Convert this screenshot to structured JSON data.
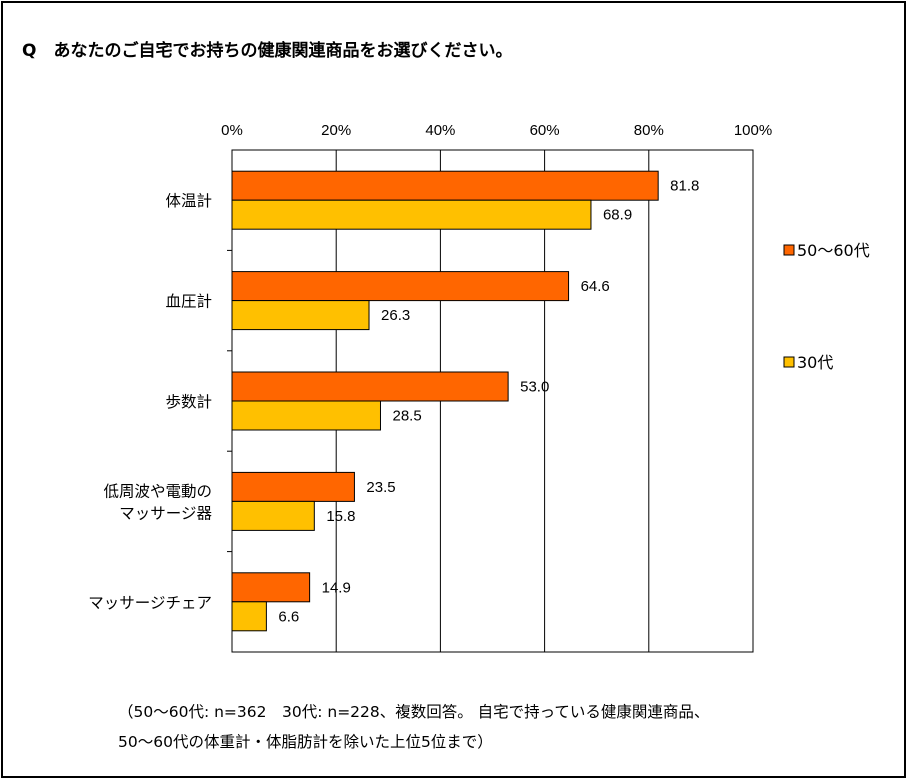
{
  "title": "Q　あなたのご自宅でお持ちの健康関連商品をお選びください。",
  "note": {
    "line1": "（50～60代: n=362　30代: n=228、複数回答。 自宅で持っている健康関連商品、",
    "line2": "50～60代の体重計・体脂肪計を除いた上位5位まで）"
  },
  "chart_data": {
    "type": "bar",
    "orientation": "horizontal",
    "categories": [
      [
        "体温計"
      ],
      [
        "血圧計"
      ],
      [
        "歩数計"
      ],
      [
        "低周波や電動の",
        "マッサージ器"
      ],
      [
        "マッサージチェア"
      ]
    ],
    "series": [
      {
        "name": "50～60代",
        "values": [
          81.8,
          64.6,
          53.0,
          23.5,
          14.9
        ],
        "color": "#FF6600"
      },
      {
        "name": "30代",
        "values": [
          68.9,
          26.3,
          28.5,
          15.8,
          6.6
        ],
        "color": "#FFC000"
      }
    ],
    "data_labels": [
      [
        "81.8",
        "64.6",
        "53.0",
        "23.5",
        "14.9"
      ],
      [
        "68.9",
        "26.3",
        "28.5",
        "15.8",
        "6.6"
      ]
    ],
    "xlim": [
      0,
      100
    ],
    "xticks": [
      "0%",
      "20%",
      "40%",
      "60%",
      "80%",
      "100%"
    ],
    "xaxis_position": "top",
    "grid": true,
    "legend_position": "right"
  }
}
